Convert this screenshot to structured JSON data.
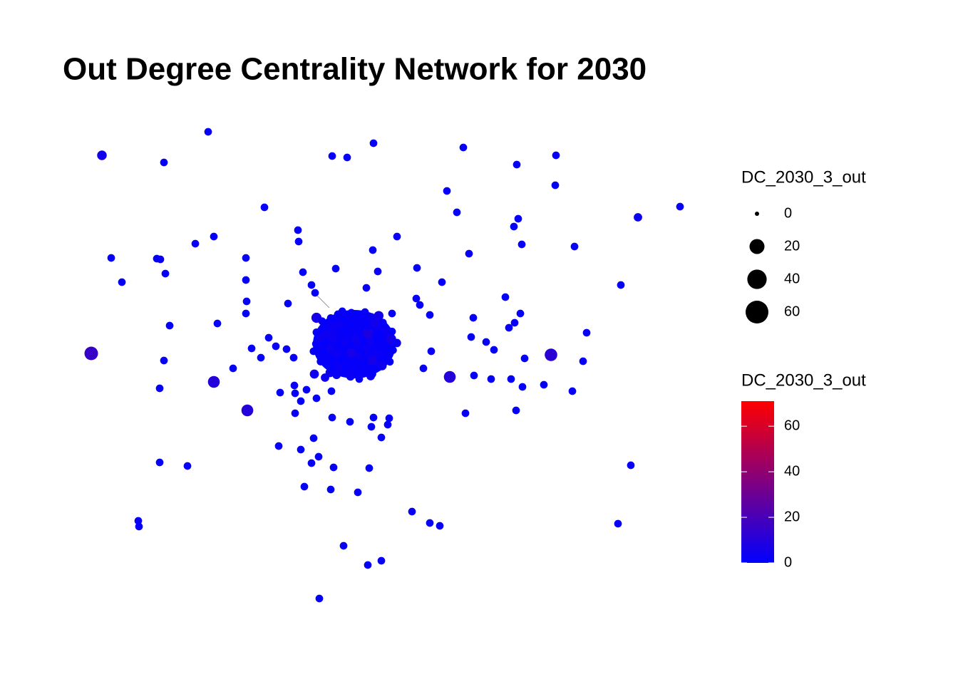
{
  "chart_data": {
    "type": "network",
    "title": "Out Degree Centrality Network for 2030",
    "values": [
      2,
      5,
      2,
      2,
      2,
      2,
      2,
      2,
      2,
      2,
      2,
      2,
      2,
      2,
      3,
      2,
      2,
      2,
      2,
      2,
      2,
      2,
      2,
      2,
      2,
      2,
      2,
      2,
      2,
      2,
      2,
      2,
      2,
      2,
      2,
      2,
      2,
      2,
      2,
      2,
      2,
      2,
      2,
      2,
      2,
      2,
      2,
      2,
      2,
      2,
      2,
      2,
      2,
      2,
      2,
      2,
      2,
      2,
      2,
      2,
      2,
      2,
      15,
      2,
      2,
      2,
      2,
      2,
      2,
      2,
      12,
      2,
      2,
      2,
      2,
      10,
      2,
      2,
      10,
      2,
      2,
      2,
      2,
      2,
      2,
      2,
      2,
      2,
      2,
      10,
      2,
      2,
      2,
      2,
      2,
      2,
      2,
      2,
      2,
      2,
      2,
      2,
      2,
      2,
      2,
      2,
      2,
      2,
      2,
      2,
      2,
      2,
      2,
      2,
      2,
      2,
      2,
      2,
      2,
      2,
      2,
      2,
      2,
      6,
      4,
      4,
      2,
      2,
      3,
      3,
      3,
      2,
      4,
      2,
      3,
      2,
      6,
      2,
      3,
      2,
      2,
      3,
      2,
      4,
      2,
      2,
      3,
      2,
      8,
      2,
      2,
      2,
      3,
      2,
      2,
      4,
      2,
      2,
      2,
      3,
      4,
      2,
      2,
      3,
      2,
      2,
      2,
      6,
      2,
      2,
      2,
      3,
      2,
      2,
      2,
      2,
      4,
      2,
      3,
      2,
      2,
      2,
      5,
      2,
      3,
      2,
      2,
      2,
      2,
      4,
      3,
      2,
      2,
      2,
      2,
      3,
      2,
      2,
      6,
      2,
      2,
      4,
      2,
      2,
      3,
      2,
      2,
      2,
      2,
      2,
      2,
      2,
      3,
      2,
      2,
      2,
      5,
      2,
      2,
      3
    ],
    "color_low": "#0000ff",
    "color_high": "#ff0000",
    "size_legend": {
      "title": "DC_2030_3_out",
      "breaks": [
        0,
        20,
        40,
        60
      ]
    },
    "color_legend": {
      "title": "DC_2030_3_out",
      "lim": [
        0,
        71
      ],
      "ticks": [
        0,
        20,
        40,
        60
      ]
    }
  }
}
